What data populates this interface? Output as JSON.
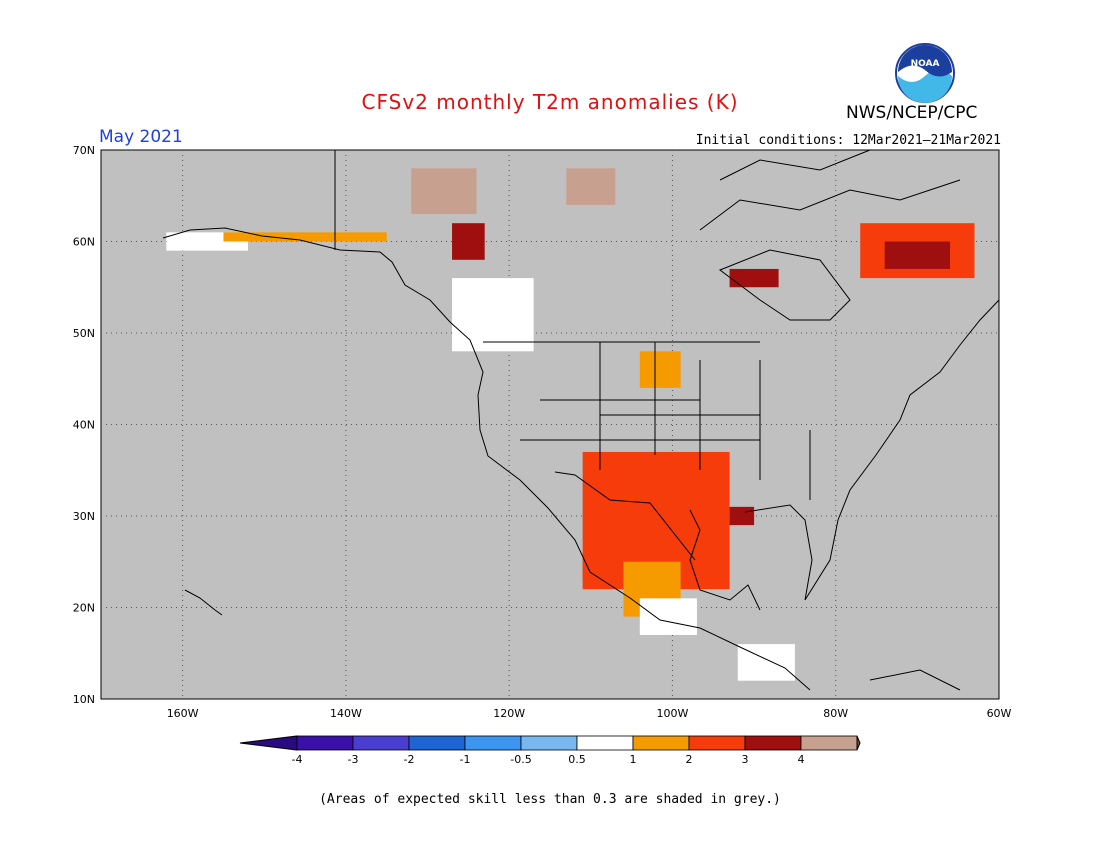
{
  "header": {
    "title": "CFSv2 monthly T2m anomalies (K)",
    "agency": "NWS/NCEP/CPC",
    "logo_text": "NOAA",
    "month": "May 2021",
    "initial_conditions": "Initial conditions: 12Mar2021–21Mar2021"
  },
  "map": {
    "lon_range": [
      -170,
      -60
    ],
    "lat_range": [
      10,
      70
    ],
    "background_color": "#c0c0c0",
    "lat_labels": [
      {
        "lat": 70,
        "label": "70N"
      },
      {
        "lat": 60,
        "label": "60N"
      },
      {
        "lat": 50,
        "label": "50N"
      },
      {
        "lat": 40,
        "label": "40N"
      },
      {
        "lat": 30,
        "label": "30N"
      },
      {
        "lat": 20,
        "label": "20N"
      },
      {
        "lat": 10,
        "label": "10N"
      }
    ],
    "lon_labels": [
      {
        "lon": -160,
        "label": "160W"
      },
      {
        "lon": -140,
        "label": "140W"
      },
      {
        "lon": -120,
        "label": "120W"
      },
      {
        "lon": -100,
        "label": "100W"
      },
      {
        "lon": -80,
        "label": "80W"
      },
      {
        "lon": -60,
        "label": "60W"
      }
    ],
    "anomaly_regions": [
      {
        "name": "southern-plains-texas-mexico",
        "class": "1-2",
        "lon": [
          -111,
          -93
        ],
        "lat": [
          22,
          37
        ]
      },
      {
        "name": "texas-louisiana-coast",
        "class": "2-3",
        "lon": [
          -93,
          -90
        ],
        "lat": [
          29,
          31
        ]
      },
      {
        "name": "mexico-highlands",
        "class": "0.5-1",
        "lon": [
          -106,
          -99
        ],
        "lat": [
          19,
          25
        ]
      },
      {
        "name": "southern-mexico",
        "class": "-0.5-0.5",
        "lon": [
          -104,
          -97
        ],
        "lat": [
          17,
          21
        ]
      },
      {
        "name": "quebec-labrador",
        "class": "1-2",
        "lon": [
          -77,
          -63
        ],
        "lat": [
          56,
          62
        ]
      },
      {
        "name": "labrador-core",
        "class": "2-3",
        "lon": [
          -74,
          -66
        ],
        "lat": [
          57,
          60
        ]
      },
      {
        "name": "hudson-bay-south",
        "class": "2-3",
        "lon": [
          -93,
          -87
        ],
        "lat": [
          55,
          57
        ]
      },
      {
        "name": "british-columbia-north",
        "class": "2-3",
        "lon": [
          -127,
          -123
        ],
        "lat": [
          58,
          62
        ]
      },
      {
        "name": "yukon-north",
        "class": "3-4",
        "lon": [
          -132,
          -124
        ],
        "lat": [
          63,
          68
        ]
      },
      {
        "name": "nunavut-central",
        "class": "3-4",
        "lon": [
          -113,
          -107
        ],
        "lat": [
          64,
          68
        ]
      },
      {
        "name": "alaska-interior",
        "class": "-0.5-0.5",
        "lon": [
          -162,
          -152
        ],
        "lat": [
          59,
          61
        ]
      },
      {
        "name": "gulf-of-alaska-coast",
        "class": "0.5-1",
        "lon": [
          -155,
          -135
        ],
        "lat": [
          60,
          61
        ]
      },
      {
        "name": "pacific-northwest-canada",
        "class": "-0.5-0.5",
        "lon": [
          -127,
          -117
        ],
        "lat": [
          48,
          56
        ]
      },
      {
        "name": "northern-plains",
        "class": "0.5-1",
        "lon": [
          -104,
          -99
        ],
        "lat": [
          44,
          48
        ]
      },
      {
        "name": "baja-gulf",
        "class": "1-2",
        "lon": [
          -111,
          -108
        ],
        "lat": [
          23,
          26
        ]
      },
      {
        "name": "central-america",
        "class": "-0.5-0.5",
        "lon": [
          -92,
          -85
        ],
        "lat": [
          12,
          16
        ]
      }
    ]
  },
  "legend": {
    "bins": [
      {
        "label": "-4",
        "color": "#3b10a8"
      },
      {
        "label": "-3",
        "color": "#4a3ed0"
      },
      {
        "label": "-2",
        "color": "#1e64d2"
      },
      {
        "label": "-1",
        "color": "#3c96f0"
      },
      {
        "label": "-0.5",
        "color": "#78b8f0"
      },
      {
        "label": "0.5",
        "color": "#ffffff"
      },
      {
        "label": "1",
        "color": "#f59b00"
      },
      {
        "label": "2",
        "color": "#f53c0a"
      },
      {
        "label": "3",
        "color": "#a00f0f"
      },
      {
        "label": "4",
        "color": "#c8a090"
      }
    ],
    "low_end_color": "#2a0a80",
    "high_end_color": "#78503a"
  },
  "footnote": "(Areas of expected skill less than 0.3 are shaded in grey.)"
}
